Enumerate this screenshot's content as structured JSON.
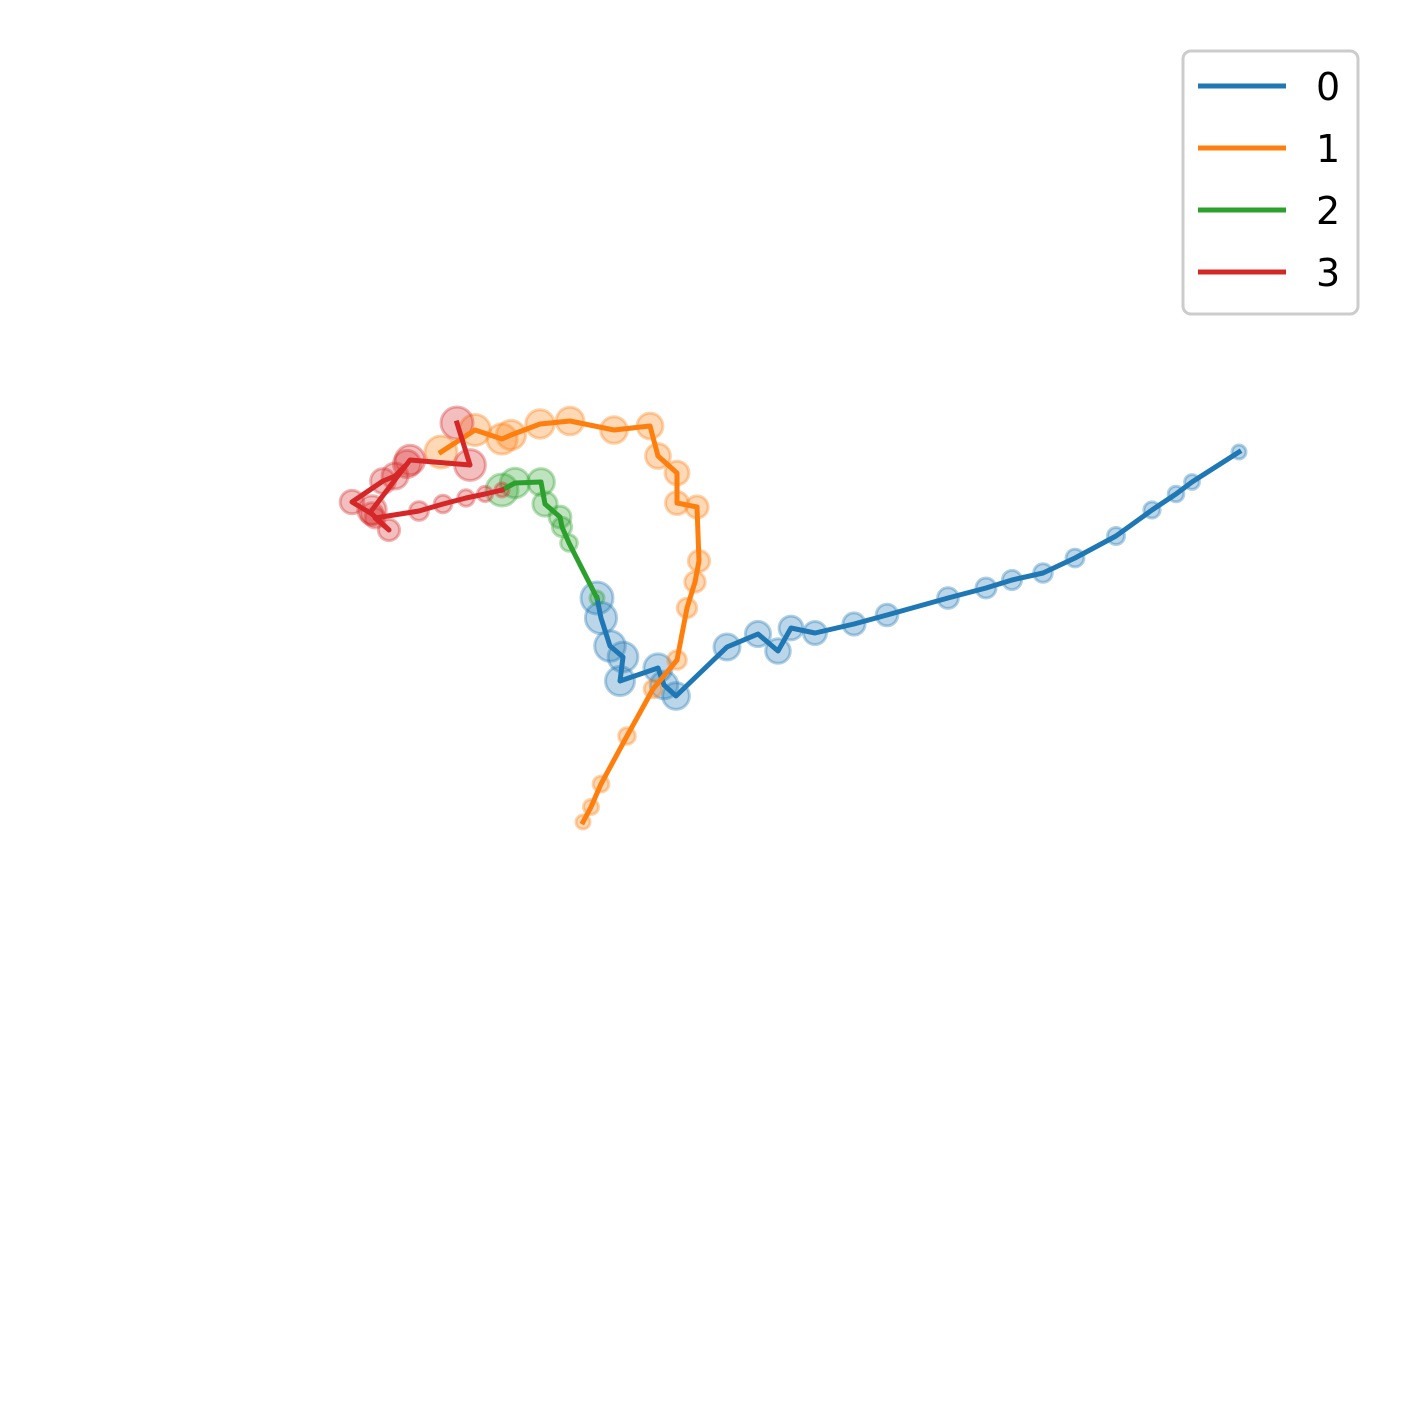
{
  "chart_data": {
    "type": "line",
    "axes_visible": false,
    "grid": false,
    "legend_position": "top-right",
    "title": "",
    "xlabel": "",
    "ylabel": "",
    "series": [
      {
        "name": "0",
        "color": "#1f77b4",
        "points": [
          [
            1239,
            452
          ],
          [
            1192,
            482
          ],
          [
            1176,
            494
          ],
          [
            1152,
            510
          ],
          [
            1116,
            536
          ],
          [
            1075,
            558
          ],
          [
            1043,
            573
          ],
          [
            1012,
            580
          ],
          [
            986,
            588
          ],
          [
            948,
            598
          ],
          [
            887,
            615
          ],
          [
            854,
            624
          ],
          [
            815,
            633
          ],
          [
            791,
            628
          ],
          [
            778,
            651
          ],
          [
            758,
            634
          ],
          [
            727,
            647
          ],
          [
            676,
            696
          ],
          [
            664,
            685
          ],
          [
            658,
            668
          ],
          [
            620,
            681
          ],
          [
            623,
            657
          ],
          [
            610,
            646
          ],
          [
            601,
            618
          ],
          [
            597,
            598
          ]
        ]
      },
      {
        "name": "1",
        "color": "#ff7f0e",
        "points": [
          [
            583,
            822
          ],
          [
            591,
            807
          ],
          [
            601,
            784
          ],
          [
            627,
            736
          ],
          [
            653,
            689
          ],
          [
            677,
            660
          ],
          [
            687,
            608
          ],
          [
            695,
            582
          ],
          [
            699,
            561
          ],
          [
            697,
            507
          ],
          [
            677,
            503
          ],
          [
            677,
            473
          ],
          [
            658,
            456
          ],
          [
            650,
            426
          ],
          [
            614,
            430
          ],
          [
            570,
            421
          ],
          [
            540,
            424
          ],
          [
            511,
            435
          ],
          [
            502,
            439
          ],
          [
            475,
            430
          ],
          [
            441,
            452
          ]
        ]
      },
      {
        "name": "2",
        "color": "#2ca02c",
        "points": [
          [
            597,
            598
          ],
          [
            569,
            543
          ],
          [
            562,
            527
          ],
          [
            560,
            517
          ],
          [
            545,
            504
          ],
          [
            541,
            482
          ],
          [
            515,
            483
          ],
          [
            502,
            490
          ]
        ]
      },
      {
        "name": "3",
        "color": "#d62728",
        "points": [
          [
            502,
            490
          ],
          [
            485,
            494
          ],
          [
            466,
            498
          ],
          [
            443,
            504
          ],
          [
            419,
            511
          ],
          [
            375,
            518
          ],
          [
            389,
            530
          ],
          [
            372,
            514
          ],
          [
            352,
            502
          ],
          [
            383,
            481
          ],
          [
            395,
            476
          ],
          [
            407,
            464
          ],
          [
            372,
            510
          ],
          [
            410,
            460
          ],
          [
            470,
            465
          ],
          [
            457,
            423
          ]
        ]
      }
    ]
  }
}
